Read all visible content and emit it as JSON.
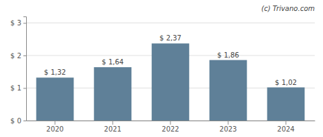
{
  "chart_data": {
    "type": "bar",
    "categories": [
      "2020",
      "2021",
      "2022",
      "2023",
      "2024"
    ],
    "values": [
      1.32,
      1.64,
      2.37,
      1.86,
      1.02
    ],
    "value_labels": [
      "$ 1,32",
      "$ 1,64",
      "$ 2,37",
      "$ 1,86",
      "$ 1,02"
    ],
    "data_labels": true,
    "color": "#5f8098",
    "ylim": [
      0,
      3.2
    ],
    "yticks": [
      {
        "value": 0,
        "label": "$ 0"
      },
      {
        "value": 1,
        "label": "$ 1"
      },
      {
        "value": 2,
        "label": "$ 2"
      },
      {
        "value": 3,
        "label": "$ 3"
      }
    ],
    "grid": true,
    "annotations": [
      {
        "text": "(c) Trivano.com"
      }
    ]
  }
}
